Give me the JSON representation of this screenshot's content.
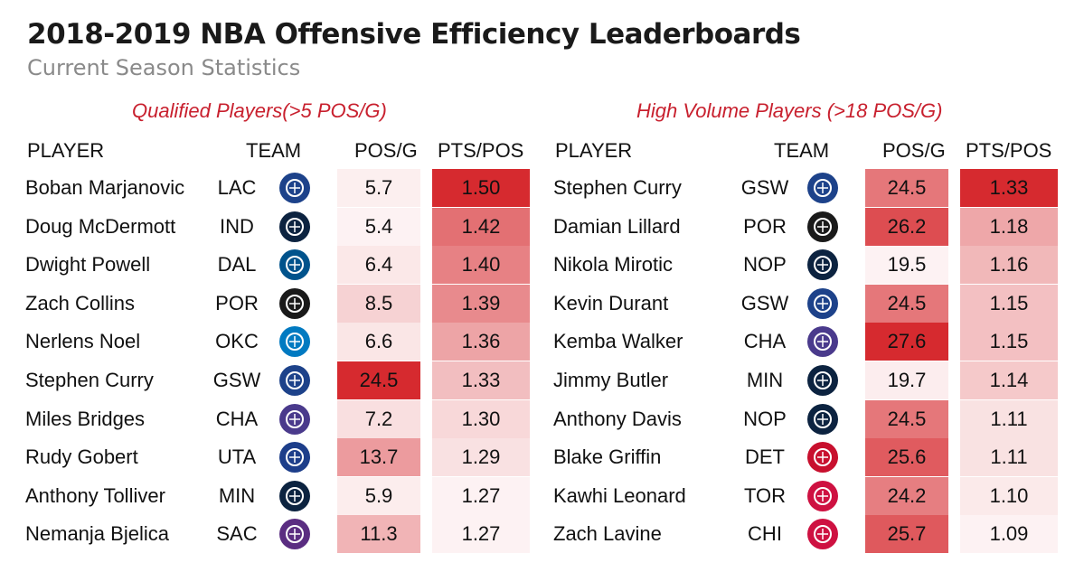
{
  "title": "2018-2019 NBA Offensive Efficiency Leaderboards",
  "subtitle": "Current Season Statistics",
  "left": {
    "heading": "Qualified Players(>5 POS/G)",
    "columns": {
      "player": "PLAYER",
      "team": "TEAM",
      "posg": "POS/G",
      "ptspos": "PTS/POS"
    },
    "rows": [
      {
        "player": "Boban Marjanovic",
        "team": "LAC",
        "logo": "clippers-logo",
        "posg": "5.7",
        "ptspos": "1.50"
      },
      {
        "player": "Doug McDermott",
        "team": "IND",
        "logo": "pacers-logo",
        "posg": "5.4",
        "ptspos": "1.42"
      },
      {
        "player": "Dwight  Powell",
        "team": "DAL",
        "logo": "mavericks-logo",
        "posg": "6.4",
        "ptspos": "1.40"
      },
      {
        "player": "Zach Collins",
        "team": "POR",
        "logo": "blazers-logo",
        "posg": "8.5",
        "ptspos": "1.39"
      },
      {
        "player": "Nerlens Noel",
        "team": "OKC",
        "logo": "thunder-logo",
        "posg": "6.6",
        "ptspos": "1.36"
      },
      {
        "player": "Stephen Curry",
        "team": "GSW",
        "logo": "warriors-logo",
        "posg": "24.5",
        "ptspos": "1.33"
      },
      {
        "player": "Miles Bridges",
        "team": "CHA",
        "logo": "hornets-logo",
        "posg": "7.2",
        "ptspos": "1.30"
      },
      {
        "player": "Rudy Gobert",
        "team": "UTA",
        "logo": "jazz-logo",
        "posg": "13.7",
        "ptspos": "1.29"
      },
      {
        "player": "Anthony Tolliver",
        "team": "MIN",
        "logo": "timberwolves-logo",
        "posg": "5.9",
        "ptspos": "1.27"
      },
      {
        "player": "Nemanja Bjelica",
        "team": "SAC",
        "logo": "kings-logo",
        "posg": "11.3",
        "ptspos": "1.27"
      }
    ]
  },
  "right": {
    "heading": "High Volume Players (>18 POS/G)",
    "columns": {
      "player": "PLAYER",
      "team": "TEAM",
      "posg": "POS/G",
      "ptspos": "PTS/POS"
    },
    "rows": [
      {
        "player": "Stephen Curry",
        "team": "GSW",
        "logo": "warriors-logo",
        "posg": "24.5",
        "ptspos": "1.33"
      },
      {
        "player": "Damian Lillard",
        "team": "POR",
        "logo": "blazers-logo",
        "posg": "26.2",
        "ptspos": "1.18"
      },
      {
        "player": "Nikola Mirotic",
        "team": "NOP",
        "logo": "pelicans-logo",
        "posg": "19.5",
        "ptspos": "1.16"
      },
      {
        "player": "Kevin Durant",
        "team": "GSW",
        "logo": "warriors-logo",
        "posg": "24.5",
        "ptspos": "1.15"
      },
      {
        "player": "Kemba Walker",
        "team": "CHA",
        "logo": "hornets-logo",
        "posg": "27.6",
        "ptspos": "1.15"
      },
      {
        "player": "Jimmy Butler",
        "team": "MIN",
        "logo": "timberwolves-logo",
        "posg": "19.7",
        "ptspos": "1.14"
      },
      {
        "player": "Anthony Davis",
        "team": "NOP",
        "logo": "pelicans-logo",
        "posg": "24.5",
        "ptspos": "1.11"
      },
      {
        "player": "Blake Griffin",
        "team": "DET",
        "logo": "pistons-logo",
        "posg": "25.6",
        "ptspos": "1.11"
      },
      {
        "player": "Kawhi Leonard",
        "team": "TOR",
        "logo": "raptors-logo",
        "posg": "24.2",
        "ptspos": "1.10"
      },
      {
        "player": "Zach Lavine",
        "team": "CHI",
        "logo": "bulls-logo",
        "posg": "25.7",
        "ptspos": "1.09"
      }
    ]
  },
  "colors": {
    "heading": "#c8202e",
    "heat_max": "#d62a2f",
    "heat_min": "#ffffff",
    "subtitle": "#8a8a8a",
    "logos": {
      "clippers-logo": "#1d428a",
      "pacers-logo": "#0c2340",
      "mavericks-logo": "#00538c",
      "blazers-logo": "#1a1a1a",
      "thunder-logo": "#007ac1",
      "warriors-logo": "#1d428a",
      "hornets-logo": "#4a3a8c",
      "jazz-logo": "#1d3e8a",
      "timberwolves-logo": "#0c2340",
      "kings-logo": "#5a2d81",
      "pelicans-logo": "#0c2340",
      "pistons-logo": "#c8102e",
      "raptors-logo": "#ce1141",
      "bulls-logo": "#ce1141"
    }
  }
}
